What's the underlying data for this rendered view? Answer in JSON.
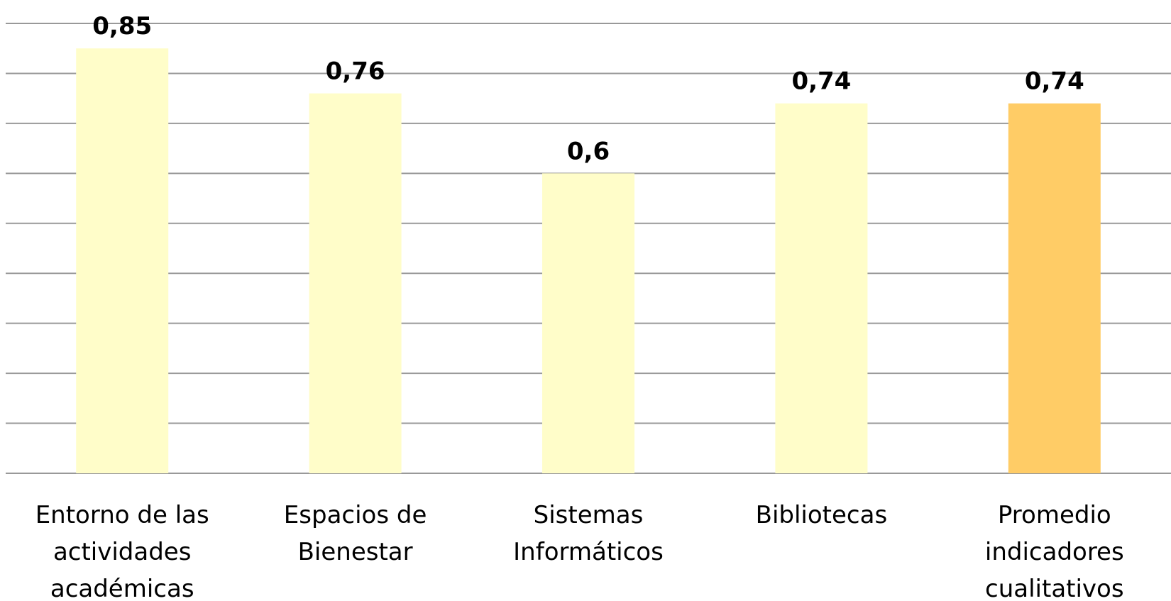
{
  "chart_data": {
    "type": "bar",
    "categories": [
      "Entorno de las actividades académicas",
      "Espacios de Bienestar",
      "Sistemas Informáticos",
      "Bibliotecas",
      "Promedio indicadores cualitativos"
    ],
    "values": [
      0.85,
      0.76,
      0.6,
      0.74,
      0.74
    ],
    "value_labels": [
      "0,85",
      "0,76",
      "0,6",
      "0,74",
      "0,74"
    ],
    "colors": [
      "#FFFDC9",
      "#FFFDC9",
      "#FFFDC9",
      "#FFFDC9",
      "#FFCC66"
    ],
    "ylim": [
      0,
      0.9
    ],
    "yticks": [
      0,
      0.1,
      0.2,
      0.3,
      0.4,
      0.5,
      0.6,
      0.7,
      0.8,
      0.9
    ],
    "grid": true,
    "ytick_labels": false
  }
}
